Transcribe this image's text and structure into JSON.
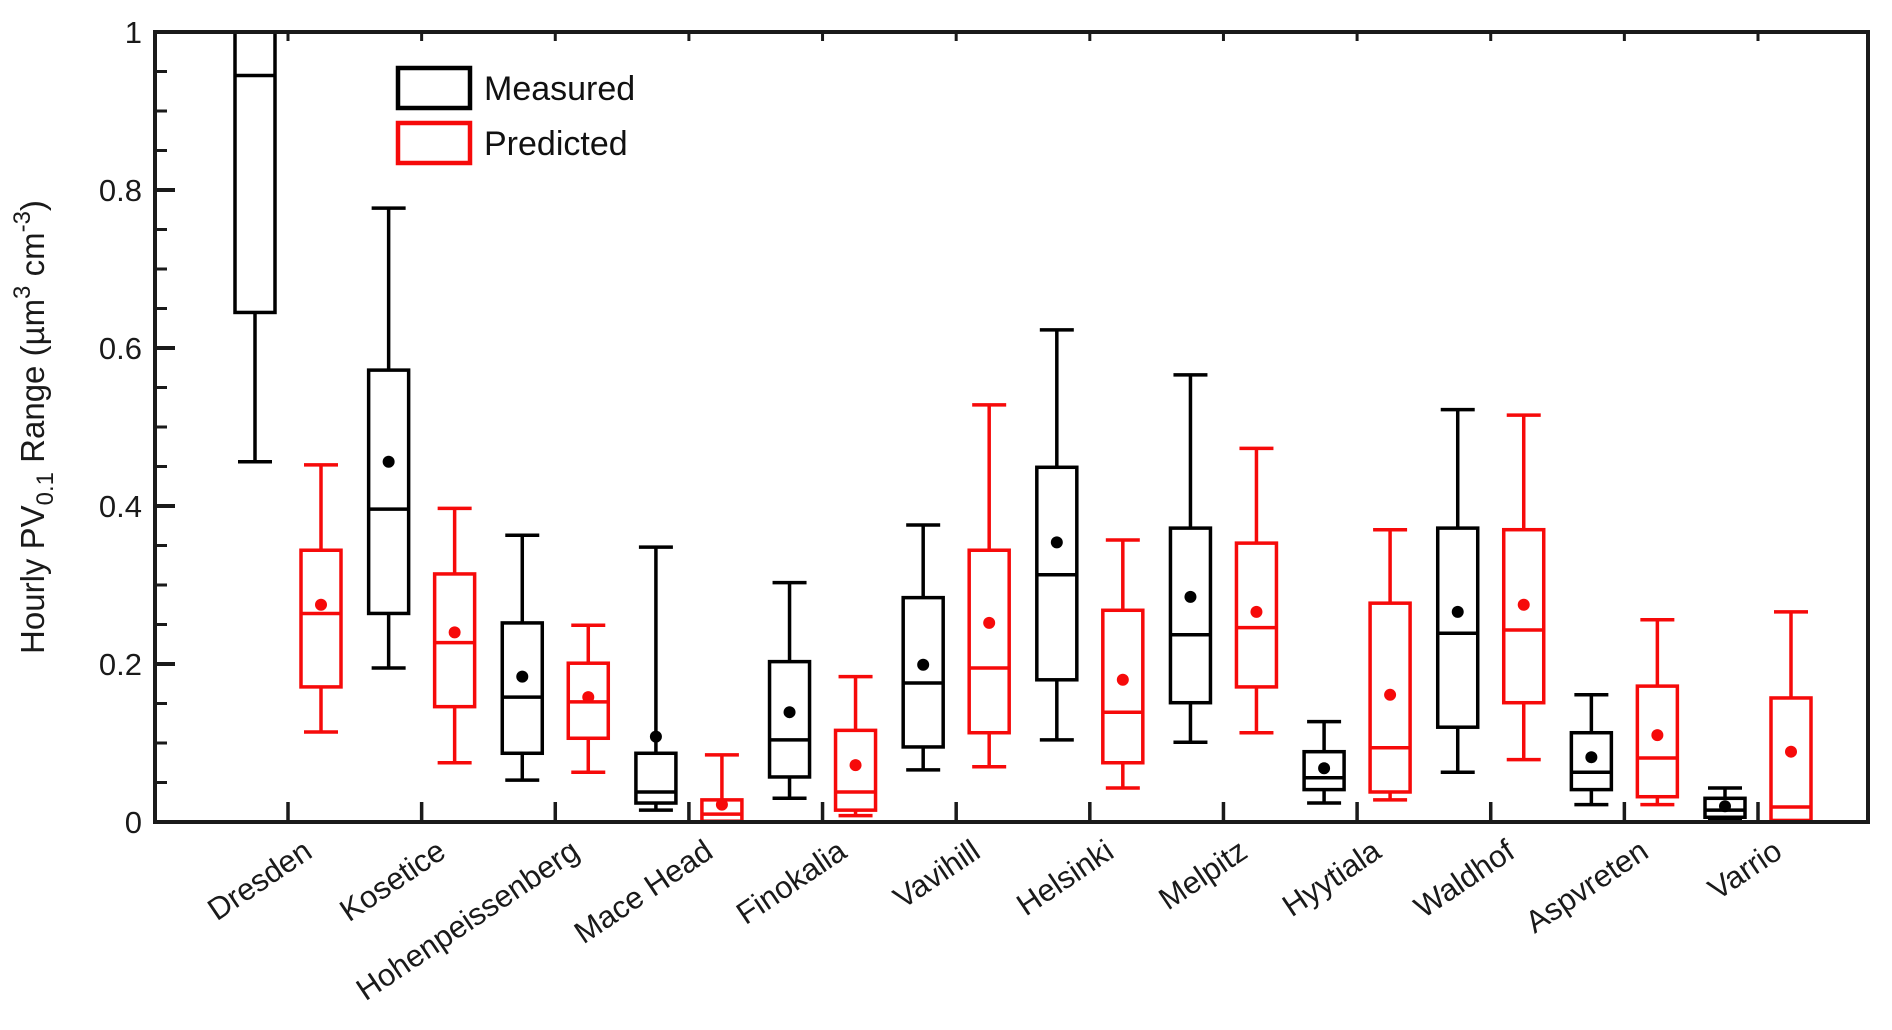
{
  "figure": {
    "background": "#ffffff",
    "axis_color": "#1a1a1a",
    "text_color": "#1a1a1a"
  },
  "legend": {
    "items": [
      {
        "label": "Measured",
        "color": "#000000"
      },
      {
        "label": "Predicted",
        "color": "#f60a0a"
      }
    ]
  },
  "chart_data": {
    "type": "boxplot",
    "title": "",
    "xlabel": "",
    "ylabel": "Hourly PV0.1 Range (µm3 cm-3)",
    "ylabel_parts": [
      {
        "text": "Hourly PV"
      },
      {
        "text": "0.1",
        "script": "sub"
      },
      {
        "text": " Range (µm"
      },
      {
        "text": "3",
        "script": "sup"
      },
      {
        "text": " cm"
      },
      {
        "text": "-3",
        "script": "sup"
      },
      {
        "text": ")"
      }
    ],
    "ylim": [
      0,
      1
    ],
    "yticks": [
      0,
      0.2,
      0.4,
      0.6,
      0.8,
      1
    ],
    "ytick_labels": [
      "0",
      "0.2",
      "0.4",
      "0.6",
      "0.8",
      "1"
    ],
    "y_minor_tick_step": 0.05,
    "grid": false,
    "legend_position": "upper-left-inside",
    "series": [
      {
        "name": "Measured",
        "color": "#000000"
      },
      {
        "name": "Predicted",
        "color": "#f60a0a"
      }
    ],
    "stations": [
      {
        "name": "Dresden",
        "measured": {
          "low": 0.456,
          "q1": 0.645,
          "median": 0.945,
          "q3": 1.0,
          "high": null,
          "mean": null,
          "clipped_top": true
        },
        "predicted": {
          "low": 0.114,
          "q1": 0.171,
          "median": 0.264,
          "q3": 0.344,
          "high": 0.452,
          "mean": 0.275
        }
      },
      {
        "name": "Kosetice",
        "measured": {
          "low": 0.195,
          "q1": 0.264,
          "median": 0.396,
          "q3": 0.572,
          "high": 0.777,
          "mean": 0.456
        },
        "predicted": {
          "low": 0.075,
          "q1": 0.146,
          "median": 0.227,
          "q3": 0.314,
          "high": 0.397,
          "mean": 0.24
        }
      },
      {
        "name": "Hohenpeissenberg",
        "measured": {
          "low": 0.053,
          "q1": 0.087,
          "median": 0.158,
          "q3": 0.252,
          "high": 0.363,
          "mean": 0.184
        },
        "predicted": {
          "low": 0.063,
          "q1": 0.106,
          "median": 0.152,
          "q3": 0.201,
          "high": 0.249,
          "mean": 0.158
        }
      },
      {
        "name": "Mace Head",
        "measured": {
          "low": 0.015,
          "q1": 0.024,
          "median": 0.038,
          "q3": 0.087,
          "high": 0.348,
          "mean": 0.108
        },
        "predicted": {
          "low": 0.001,
          "q1": 0.001,
          "median": 0.01,
          "q3": 0.028,
          "high": 0.085,
          "mean": 0.022
        }
      },
      {
        "name": "Finokalia",
        "measured": {
          "low": 0.03,
          "q1": 0.057,
          "median": 0.104,
          "q3": 0.203,
          "high": 0.303,
          "mean": 0.139
        },
        "predicted": {
          "low": 0.008,
          "q1": 0.015,
          "median": 0.038,
          "q3": 0.116,
          "high": 0.184,
          "mean": 0.072
        }
      },
      {
        "name": "Vavihill",
        "measured": {
          "low": 0.066,
          "q1": 0.095,
          "median": 0.176,
          "q3": 0.284,
          "high": 0.376,
          "mean": 0.199
        },
        "predicted": {
          "low": 0.07,
          "q1": 0.113,
          "median": 0.195,
          "q3": 0.344,
          "high": 0.528,
          "mean": 0.252
        }
      },
      {
        "name": "Helsinki",
        "measured": {
          "low": 0.104,
          "q1": 0.18,
          "median": 0.313,
          "q3": 0.449,
          "high": 0.623,
          "mean": 0.354
        },
        "predicted": {
          "low": 0.043,
          "q1": 0.075,
          "median": 0.139,
          "q3": 0.268,
          "high": 0.357,
          "mean": 0.18
        }
      },
      {
        "name": "Melpitz",
        "measured": {
          "low": 0.101,
          "q1": 0.151,
          "median": 0.237,
          "q3": 0.372,
          "high": 0.566,
          "mean": 0.285
        },
        "predicted": {
          "low": 0.113,
          "q1": 0.171,
          "median": 0.246,
          "q3": 0.353,
          "high": 0.473,
          "mean": 0.266
        }
      },
      {
        "name": "Hyytiala",
        "measured": {
          "low": 0.024,
          "q1": 0.041,
          "median": 0.056,
          "q3": 0.089,
          "high": 0.127,
          "mean": 0.068
        },
        "predicted": {
          "low": 0.028,
          "q1": 0.038,
          "median": 0.094,
          "q3": 0.277,
          "high": 0.37,
          "mean": 0.161
        }
      },
      {
        "name": "Waldhof",
        "measured": {
          "low": 0.063,
          "q1": 0.12,
          "median": 0.239,
          "q3": 0.372,
          "high": 0.522,
          "mean": 0.266
        },
        "predicted": {
          "low": 0.079,
          "q1": 0.151,
          "median": 0.243,
          "q3": 0.37,
          "high": 0.515,
          "mean": 0.275
        }
      },
      {
        "name": "Aspvreten",
        "measured": {
          "low": 0.022,
          "q1": 0.041,
          "median": 0.063,
          "q3": 0.113,
          "high": 0.161,
          "mean": 0.082
        },
        "predicted": {
          "low": 0.022,
          "q1": 0.032,
          "median": 0.081,
          "q3": 0.172,
          "high": 0.256,
          "mean": 0.11
        }
      },
      {
        "name": "Varrio",
        "measured": {
          "low": 0.002,
          "q1": 0.006,
          "median": 0.015,
          "q3": 0.03,
          "high": 0.043,
          "mean": 0.02
        },
        "predicted": {
          "low": 0.002,
          "q1": 0.002,
          "median": 0.019,
          "q3": 0.157,
          "high": 0.266,
          "mean": 0.089
        }
      }
    ]
  }
}
